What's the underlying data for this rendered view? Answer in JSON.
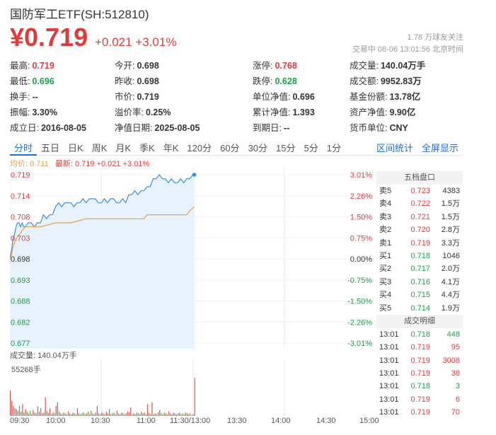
{
  "header": {
    "title": "国防军工ETF(SH:512810)",
    "price": "¥0.719",
    "change": "+0.021 +3.01%",
    "follow": "1.78 万球友关注",
    "time_info": "交易中 08-06 13:01:56 北京时间"
  },
  "stats": [
    [
      {
        "label": "最高:",
        "value": "0.719",
        "color": "red"
      },
      {
        "label": "今开:",
        "value": "0.698",
        "color": ""
      },
      {
        "label": "涨停:",
        "value": "0.768",
        "color": "red"
      },
      {
        "label": "成交量:",
        "value": "140.04万手",
        "color": ""
      }
    ],
    [
      {
        "label": "最低:",
        "value": "0.696",
        "color": "green"
      },
      {
        "label": "昨收:",
        "value": "0.698",
        "color": ""
      },
      {
        "label": "跌停:",
        "value": "0.628",
        "color": "green"
      },
      {
        "label": "成交额:",
        "value": "9952.83万",
        "color": ""
      }
    ],
    [
      {
        "label": "换手:",
        "value": "--",
        "color": ""
      },
      {
        "label": "市价:",
        "value": "0.719",
        "color": ""
      },
      {
        "label": "单位净值:",
        "value": "0.696",
        "color": ""
      },
      {
        "label": "基金份额:",
        "value": "13.78亿",
        "color": ""
      }
    ],
    [
      {
        "label": "振幅:",
        "value": "3.30%",
        "color": ""
      },
      {
        "label": "溢价率:",
        "value": "0.25%",
        "color": ""
      },
      {
        "label": "累计净值:",
        "value": "1.393",
        "color": ""
      },
      {
        "label": "资产净值:",
        "value": "9.90亿",
        "color": ""
      }
    ],
    [
      {
        "label": "成立日:",
        "value": "2016-08-05",
        "color": ""
      },
      {
        "label": "净值日期:",
        "value": "2025-08-05",
        "color": ""
      },
      {
        "label": "到期日:",
        "value": "--",
        "color": ""
      },
      {
        "label": "货币单位:",
        "value": "CNY",
        "color": ""
      }
    ]
  ],
  "tabs": [
    "分时",
    "五日",
    "日K",
    "周K",
    "月K",
    "季K",
    "年K",
    "120分",
    "60分",
    "30分",
    "15分",
    "5分",
    "1分"
  ],
  "tabs_right": [
    "区间统计",
    "全屏显示"
  ],
  "legend": {
    "avg": "均价: 0.711",
    "latest": "最新: 0.719 +0.021 +3.01%"
  },
  "volume": {
    "label": "成交量: 140.04万手",
    "max": "55268手"
  },
  "x_labels": [
    "09:30",
    "10:00",
    "10:30",
    "11:00",
    "11:30/13:00",
    "13:30",
    "14:00",
    "14:30",
    "15:00"
  ],
  "orderbook": {
    "title": "五档盘口",
    "rows": [
      {
        "label": "卖5",
        "price": "0.723",
        "vol": "4383"
      },
      {
        "label": "卖4",
        "price": "0.722",
        "vol": "1.5万"
      },
      {
        "label": "卖3",
        "price": "0.721",
        "vol": "1.5万"
      },
      {
        "label": "卖2",
        "price": "0.720",
        "vol": "2.8万"
      },
      {
        "label": "卖1",
        "price": "0.719",
        "vol": "3.3万"
      },
      {
        "label": "买1",
        "price": "0.718",
        "vol": "1046"
      },
      {
        "label": "买2",
        "price": "0.717",
        "vol": "2.0万"
      },
      {
        "label": "买3",
        "price": "0.716",
        "vol": "4.1万"
      },
      {
        "label": "买4",
        "price": "0.715",
        "vol": "4.4万"
      },
      {
        "label": "买5",
        "price": "0.714",
        "vol": "1.9万"
      }
    ]
  },
  "trades": {
    "title": "成交明细",
    "rows": [
      {
        "time": "13:01",
        "price": "0.718",
        "vol": "448",
        "color": "green"
      },
      {
        "time": "13:01",
        "price": "0.719",
        "vol": "95",
        "color": "red"
      },
      {
        "time": "13:01",
        "price": "0.719",
        "vol": "3008",
        "color": "red"
      },
      {
        "time": "13:01",
        "price": "0.719",
        "vol": "38",
        "color": "red"
      },
      {
        "time": "13:01",
        "price": "0.718",
        "vol": "3",
        "color": "green"
      },
      {
        "time": "13:01",
        "price": "0.719",
        "vol": "6",
        "color": "red"
      },
      {
        "time": "13:01",
        "price": "0.719",
        "vol": "70",
        "color": "red"
      }
    ]
  },
  "chart_data": {
    "type": "line",
    "prev_close": 0.698,
    "ylim": [
      0.677,
      0.719
    ],
    "y_ticks_left": [
      "0.719",
      "0.714",
      "0.708",
      "0.703",
      "0.698",
      "0.693",
      "0.688",
      "0.682",
      "0.677"
    ],
    "y_ticks_right": [
      "3.01%",
      "2.26%",
      "1.50%",
      "0.75%",
      "0.00%",
      "-0.75%",
      "-1.50%",
      "-2.26%",
      "-3.01%"
    ],
    "x_session_minutes": 240,
    "series": [
      {
        "name": "最新",
        "color": "#3a8ee6",
        "x": [
          0,
          1,
          2,
          3,
          4,
          5,
          6,
          7,
          8,
          9,
          10,
          12,
          14,
          16,
          18,
          20,
          22,
          24,
          26,
          28,
          30,
          32,
          34,
          36,
          38,
          40,
          42,
          44,
          46,
          48,
          50,
          52,
          54,
          56,
          58,
          60,
          62,
          64,
          66,
          68,
          70,
          72,
          74,
          76,
          78,
          80,
          82,
          84,
          86,
          88,
          90,
          92,
          94,
          96,
          98,
          100,
          102,
          104,
          106,
          108,
          110,
          112,
          114,
          116,
          118,
          120,
          121
        ],
        "values": [
          0.698,
          0.7,
          0.703,
          0.704,
          0.706,
          0.707,
          0.707,
          0.706,
          0.707,
          0.706,
          0.706,
          0.707,
          0.707,
          0.706,
          0.707,
          0.707,
          0.709,
          0.708,
          0.709,
          0.709,
          0.711,
          0.712,
          0.711,
          0.712,
          0.712,
          0.712,
          0.711,
          0.712,
          0.712,
          0.713,
          0.712,
          0.713,
          0.713,
          0.713,
          0.712,
          0.712,
          0.713,
          0.712,
          0.713,
          0.713,
          0.712,
          0.712,
          0.713,
          0.712,
          0.714,
          0.714,
          0.715,
          0.714,
          0.715,
          0.715,
          0.716,
          0.716,
          0.718,
          0.718,
          0.719,
          0.718,
          0.718,
          0.717,
          0.718,
          0.717,
          0.717,
          0.718,
          0.717,
          0.718,
          0.718,
          0.719,
          0.719
        ]
      },
      {
        "name": "均价",
        "color": "#e8a040",
        "x": [
          0,
          1,
          2,
          3,
          4,
          6,
          8,
          10,
          20,
          30,
          40,
          50,
          60,
          70,
          80,
          88,
          90,
          100,
          110,
          116,
          118,
          121
        ],
        "values": [
          0.698,
          0.699,
          0.701,
          0.702,
          0.703,
          0.704,
          0.705,
          0.706,
          0.706,
          0.707,
          0.707,
          0.708,
          0.708,
          0.708,
          0.708,
          0.708,
          0.709,
          0.709,
          0.709,
          0.709,
          0.71,
          0.711
        ]
      }
    ],
    "volume": {
      "ylim": [
        0,
        55268
      ],
      "x": [
        0,
        1,
        2,
        3,
        4,
        5,
        6,
        7,
        8,
        9,
        10,
        11,
        12,
        13,
        14,
        15,
        16,
        17,
        18,
        19,
        20,
        21,
        22,
        23,
        24,
        25,
        26,
        27,
        28,
        29,
        30,
        31,
        32,
        33,
        34,
        35,
        36,
        37,
        38,
        39,
        40,
        41,
        42,
        43,
        44,
        45,
        46,
        47,
        48,
        49,
        50,
        51,
        52,
        53,
        54,
        55,
        56,
        57,
        58,
        59,
        60,
        61,
        62,
        63,
        64,
        65,
        66,
        67,
        68,
        69,
        70,
        71,
        72,
        73,
        74,
        75,
        76,
        77,
        78,
        79,
        80,
        81,
        82,
        83,
        84,
        85,
        86,
        87,
        88,
        89,
        90,
        91,
        92,
        93,
        94,
        95,
        96,
        97,
        98,
        99,
        100,
        101,
        102,
        103,
        104,
        105,
        106,
        107,
        108,
        109,
        110,
        111,
        112,
        113,
        114,
        115,
        116,
        117,
        118,
        119,
        120,
        121
      ],
      "values": [
        30000,
        18000,
        12000,
        9000,
        8000,
        6000,
        12000,
        5000,
        14000,
        4000,
        8000,
        5000,
        3000,
        6000,
        2000,
        7000,
        4000,
        3000,
        11000,
        5000,
        9000,
        3000,
        4000,
        22000,
        6000,
        3000,
        9000,
        2000,
        4000,
        3000,
        12000,
        16000,
        5000,
        3000,
        2000,
        4000,
        3000,
        2000,
        5000,
        3000,
        2000,
        4000,
        3000,
        2000,
        9000,
        3000,
        2000,
        3000,
        4000,
        2000,
        3000,
        5000,
        2000,
        6000,
        3000,
        2000,
        4000,
        12000,
        3000,
        2000,
        4000,
        3000,
        2000,
        5000,
        3000,
        8000,
        2000,
        3000,
        4000,
        2000,
        6000,
        3000,
        2000,
        4000,
        3000,
        2000,
        3000,
        5000,
        4000,
        10000,
        2000,
        3000,
        2000,
        4000,
        3000,
        2000,
        5000,
        3000,
        4000,
        2000,
        14000,
        3000,
        2000,
        16000,
        2000,
        3000,
        2000,
        4000,
        7000,
        3000,
        2000,
        4000,
        3000,
        2000,
        5000,
        3000,
        2000,
        4000,
        3000,
        2000,
        3000,
        4000,
        2000,
        3000,
        2000,
        4000,
        3000,
        2000,
        3000,
        1000,
        2000,
        45000
      ],
      "up": [
        1,
        1,
        1,
        0,
        1,
        1,
        0,
        1,
        1,
        0,
        1,
        0,
        1,
        0,
        1,
        1,
        0,
        1,
        1,
        0,
        1,
        0,
        1,
        1,
        0,
        1,
        1,
        0,
        1,
        0,
        1,
        1,
        0,
        1,
        0,
        1,
        0,
        1,
        1,
        0,
        1,
        0,
        1,
        0,
        1,
        1,
        0,
        1,
        0,
        1,
        0,
        1,
        1,
        0,
        1,
        0,
        1,
        1,
        0,
        1,
        0,
        1,
        0,
        1,
        1,
        0,
        1,
        0,
        1,
        0,
        1,
        1,
        0,
        1,
        0,
        1,
        0,
        1,
        1,
        1,
        0,
        1,
        0,
        1,
        0,
        1,
        1,
        0,
        1,
        0,
        1,
        1,
        0,
        1,
        0,
        1,
        0,
        1,
        1,
        0,
        1,
        0,
        1,
        0,
        1,
        1,
        0,
        1,
        0,
        1,
        0,
        1,
        1,
        0,
        1,
        0,
        1,
        0,
        1,
        1,
        0,
        1
      ]
    }
  }
}
